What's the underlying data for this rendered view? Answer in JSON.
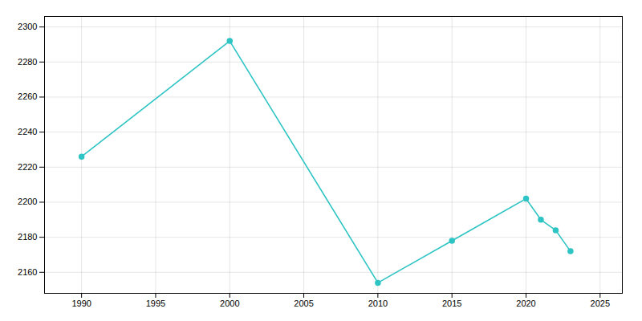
{
  "chart_data": {
    "type": "line",
    "x": [
      1990,
      2000,
      2010,
      2015,
      2020,
      2021,
      2022,
      2023
    ],
    "values": [
      2226,
      2292,
      2154,
      2178,
      2202,
      2190,
      2184,
      2172
    ],
    "color": "#2ec4c4",
    "marker": "circle",
    "xlim": [
      1987.5,
      2026.5
    ],
    "xticks": [
      1990,
      1995,
      2000,
      2005,
      2010,
      2015,
      2020,
      2025
    ],
    "ylim": [
      2148,
      2306
    ],
    "yticks": [
      2160,
      2180,
      2200,
      2220,
      2240,
      2260,
      2280,
      2300
    ],
    "grid": true
  }
}
